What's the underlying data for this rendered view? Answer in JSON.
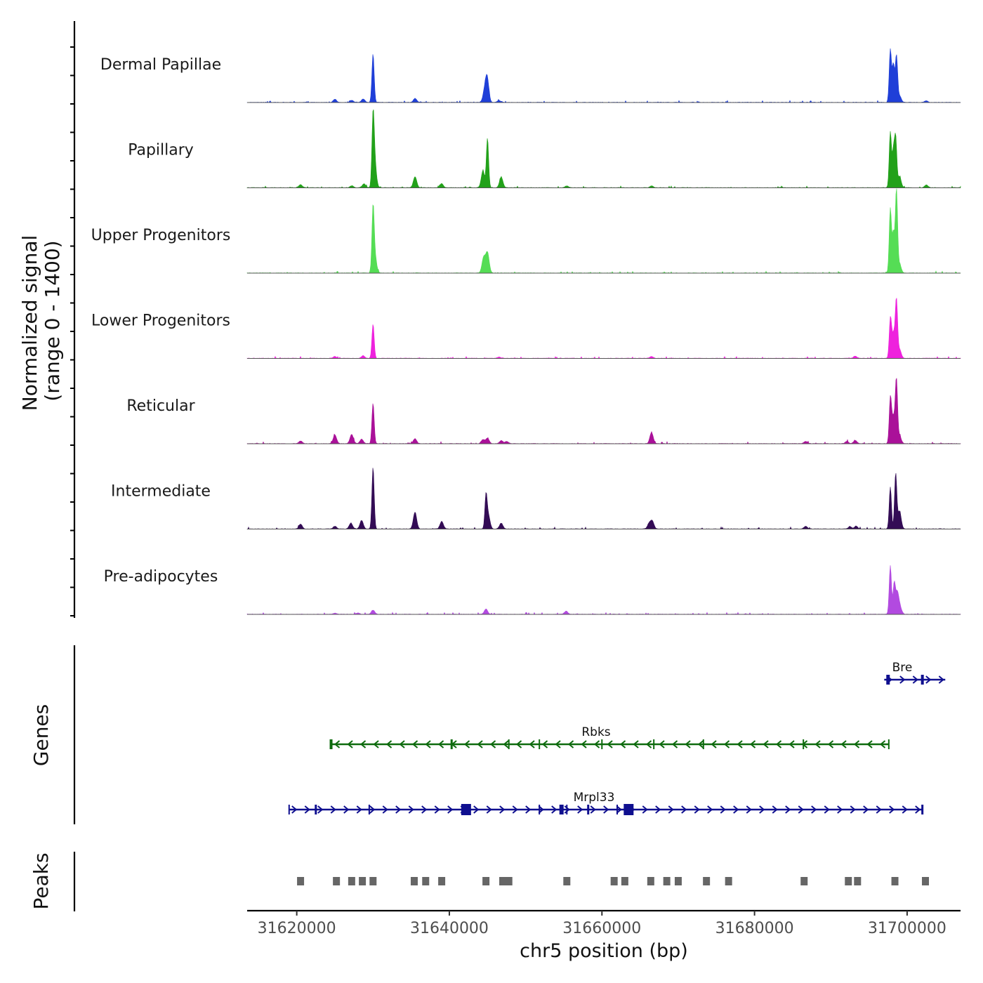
{
  "chart_data": {
    "type": "area",
    "title": "",
    "xlabel": "chr5 position (bp)",
    "ylabel": "Normalized signal",
    "ylabel_range": "(range 0 - 1400)",
    "xlim": [
      31613500,
      31707000
    ],
    "ylim": [
      0,
      1400
    ],
    "x_ticks": [
      31620000,
      31640000,
      31660000,
      31680000,
      31700000
    ],
    "x_tick_labels": [
      "31620000",
      "31640000",
      "31660000",
      "31680000",
      "31700000"
    ],
    "series": [
      {
        "name": "Dermal Papillae",
        "color": "#1f3fd8",
        "peaks": [
          [
            31625000,
            70
          ],
          [
            31627200,
            45
          ],
          [
            31628700,
            80
          ],
          [
            31630000,
            1100
          ],
          [
            31635500,
            90
          ],
          [
            31644600,
            220
          ],
          [
            31644950,
            560
          ],
          [
            31646500,
            40
          ],
          [
            31697800,
            1200
          ],
          [
            31698200,
            850
          ],
          [
            31698600,
            1050
          ],
          [
            31699000,
            150
          ],
          [
            31702500,
            35
          ]
        ]
      },
      {
        "name": "Papillary",
        "color": "#22a11a",
        "peaks": [
          [
            31620500,
            70
          ],
          [
            31627200,
            45
          ],
          [
            31628800,
            90
          ],
          [
            31630000,
            1400
          ],
          [
            31630200,
            600
          ],
          [
            31635500,
            250
          ],
          [
            31639000,
            90
          ],
          [
            31644400,
            380
          ],
          [
            31645000,
            1120
          ],
          [
            31646800,
            240
          ],
          [
            31655400,
            40
          ],
          [
            31666500,
            40
          ],
          [
            31697800,
            1260
          ],
          [
            31698200,
            800
          ],
          [
            31698500,
            1110
          ],
          [
            31699000,
            250
          ],
          [
            31702500,
            60
          ]
        ]
      },
      {
        "name": "Upper Progenitors",
        "color": "#55dd55",
        "peaks": [
          [
            31630000,
            1400
          ],
          [
            31630250,
            350
          ],
          [
            31644500,
            350
          ],
          [
            31645000,
            460
          ],
          [
            31697800,
            1460
          ],
          [
            31698200,
            900
          ],
          [
            31698600,
            2300
          ],
          [
            31699000,
            200
          ]
        ]
      },
      {
        "name": "Lower Progenitors",
        "color": "#ee22dd",
        "peaks": [
          [
            31625000,
            40
          ],
          [
            31628700,
            60
          ],
          [
            31630000,
            780
          ],
          [
            31646500,
            30
          ],
          [
            31666500,
            40
          ],
          [
            31693200,
            50
          ],
          [
            31697800,
            850
          ],
          [
            31698200,
            550
          ],
          [
            31698600,
            1250
          ],
          [
            31699000,
            200
          ]
        ]
      },
      {
        "name": "Reticular",
        "color": "#aa1199",
        "peaks": [
          [
            31620500,
            60
          ],
          [
            31625000,
            200
          ],
          [
            31627200,
            210
          ],
          [
            31628500,
            100
          ],
          [
            31630000,
            920
          ],
          [
            31635500,
            110
          ],
          [
            31644400,
            90
          ],
          [
            31645000,
            120
          ],
          [
            31646800,
            70
          ],
          [
            31647500,
            50
          ],
          [
            31666500,
            250
          ],
          [
            31686700,
            50
          ],
          [
            31692100,
            50
          ],
          [
            31693200,
            70
          ],
          [
            31697800,
            980
          ],
          [
            31698200,
            600
          ],
          [
            31698600,
            1360
          ],
          [
            31699000,
            180
          ]
        ]
      },
      {
        "name": "Intermediate",
        "color": "#330c55",
        "peaks": [
          [
            31620500,
            110
          ],
          [
            31625000,
            60
          ],
          [
            31627100,
            130
          ],
          [
            31628500,
            190
          ],
          [
            31630000,
            1400
          ],
          [
            31635500,
            380
          ],
          [
            31639000,
            170
          ],
          [
            31644800,
            700
          ],
          [
            31645100,
            320
          ],
          [
            31646800,
            130
          ],
          [
            31666200,
            120
          ],
          [
            31666600,
            170
          ],
          [
            31686700,
            60
          ],
          [
            31692500,
            50
          ],
          [
            31693300,
            60
          ],
          [
            31697800,
            950
          ],
          [
            31698500,
            1250
          ],
          [
            31699000,
            400
          ]
        ]
      },
      {
        "name": "Pre-adipocytes",
        "color": "#b24ae0",
        "peaks": [
          [
            31625000,
            25
          ],
          [
            31628000,
            30
          ],
          [
            31630000,
            90
          ],
          [
            31644800,
            120
          ],
          [
            31655300,
            70
          ],
          [
            31697800,
            1100
          ],
          [
            31698300,
            650
          ],
          [
            31698700,
            500
          ],
          [
            31699100,
            120
          ]
        ]
      }
    ],
    "genes": [
      {
        "name": "Rbks",
        "strand": "-",
        "color": "#0e6b0e",
        "start": 31624500,
        "end": 31697600
      },
      {
        "name": "Mrpl33",
        "strand": "+",
        "color": "#0f0f8f",
        "start": 31619000,
        "end": 31702000
      },
      {
        "name": "Bre",
        "strand": "+",
        "color": "#0f0f8f",
        "start": 31697000,
        "end": 31705000
      }
    ],
    "peaks_track_label": "Peaks",
    "genes_track_label": "Genes",
    "peak_regions": [
      31620500,
      31625200,
      31627200,
      31628600,
      31630000,
      31635400,
      31636900,
      31639000,
      31644800,
      31647000,
      31647800,
      31655400,
      31661600,
      31663000,
      31666400,
      31668500,
      31670000,
      31673700,
      31676600,
      31686500,
      31692300,
      31693500,
      31698400,
      31702400
    ]
  }
}
